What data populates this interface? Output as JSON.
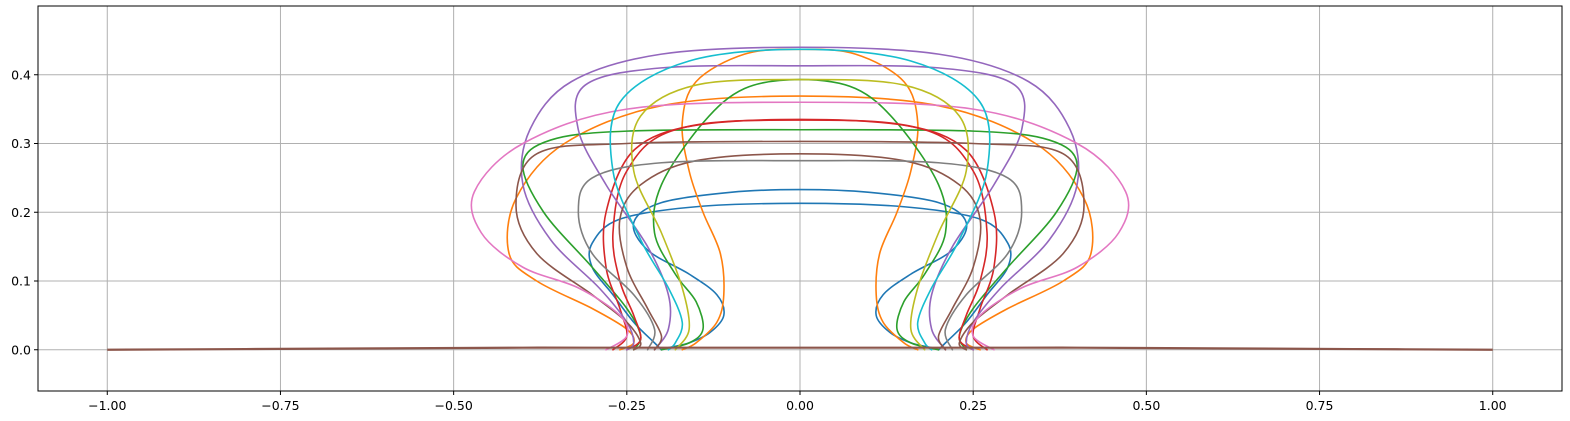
{
  "chart_data": {
    "type": "line",
    "title": "",
    "xlabel": "",
    "ylabel": "",
    "xlim": [
      -1.1,
      1.1
    ],
    "ylim": [
      -0.06,
      0.5
    ],
    "grid": true,
    "legend": "none",
    "x_ticks": [
      {
        "value": -1.0,
        "label": "−1.00"
      },
      {
        "value": -0.75,
        "label": "−0.75"
      },
      {
        "value": -0.5,
        "label": "−0.50"
      },
      {
        "value": -0.25,
        "label": "−0.25"
      },
      {
        "value": 0.0,
        "label": "0.00"
      },
      {
        "value": 0.25,
        "label": "0.25"
      },
      {
        "value": 0.5,
        "label": "0.50"
      },
      {
        "value": 0.75,
        "label": "0.75"
      },
      {
        "value": 1.0,
        "label": "1.00"
      }
    ],
    "y_ticks": [
      {
        "value": 0.0,
        "label": "0.0"
      },
      {
        "value": 0.1,
        "label": "0.1"
      },
      {
        "value": 0.2,
        "label": "0.2"
      },
      {
        "value": 0.3,
        "label": "0.3"
      },
      {
        "value": 0.4,
        "label": "0.4"
      }
    ],
    "baseline": {
      "color": "#8c564b",
      "x": [
        -1.0,
        -0.8,
        -0.6,
        -0.4,
        -0.3,
        0.3,
        0.4,
        0.6,
        0.8,
        1.0
      ],
      "y": [
        0.0,
        0.001,
        0.002,
        0.003,
        0.003,
        0.003,
        0.003,
        0.002,
        0.001,
        0.0
      ]
    },
    "series": [
      {
        "color": "#1f77b4",
        "x": [
          0.0,
          0.1,
          0.2,
          0.24,
          0.22,
          0.16,
          0.12,
          0.11,
          0.13,
          0.16,
          0.19,
          0.2
        ],
        "y": [
          0.233,
          0.229,
          0.214,
          0.185,
          0.145,
          0.11,
          0.08,
          0.05,
          0.025,
          0.01,
          0.003,
          0.0
        ]
      },
      {
        "color": "#1f77b4",
        "x": [
          0.0,
          0.15,
          0.26,
          0.3,
          0.3,
          0.27,
          0.24,
          0.21,
          0.2
        ],
        "y": [
          0.213,
          0.208,
          0.19,
          0.155,
          0.12,
          0.08,
          0.04,
          0.01,
          0.0
        ]
      },
      {
        "color": "#ff7f0e",
        "x": [
          0.0,
          0.08,
          0.15,
          0.17,
          0.16,
          0.14,
          0.115,
          0.11,
          0.12,
          0.15,
          0.17
        ],
        "y": [
          0.437,
          0.43,
          0.39,
          0.33,
          0.26,
          0.2,
          0.14,
          0.08,
          0.04,
          0.01,
          0.0
        ]
      },
      {
        "color": "#ff7f0e",
        "x": [
          0.0,
          0.2,
          0.34,
          0.41,
          0.42,
          0.38,
          0.3,
          0.25,
          0.24,
          0.26
        ],
        "y": [
          0.369,
          0.355,
          0.3,
          0.22,
          0.14,
          0.1,
          0.06,
          0.03,
          0.01,
          0.0
        ]
      },
      {
        "color": "#2ca02c",
        "x": [
          0.0,
          0.08,
          0.14,
          0.2,
          0.21,
          0.18,
          0.15,
          0.14,
          0.16,
          0.2
        ],
        "y": [
          0.393,
          0.38,
          0.33,
          0.24,
          0.17,
          0.11,
          0.07,
          0.03,
          0.01,
          0.0
        ]
      },
      {
        "color": "#2ca02c",
        "x": [
          0.0,
          0.25,
          0.36,
          0.4,
          0.37,
          0.3,
          0.25,
          0.23,
          0.24
        ],
        "y": [
          0.32,
          0.318,
          0.305,
          0.27,
          0.2,
          0.12,
          0.06,
          0.02,
          0.0
        ]
      },
      {
        "color": "#d62728",
        "x": [
          0.0,
          0.15,
          0.24,
          0.28,
          0.28,
          0.26,
          0.25,
          0.27
        ],
        "y": [
          0.334,
          0.327,
          0.29,
          0.2,
          0.12,
          0.06,
          0.02,
          0.0
        ]
      },
      {
        "color": "#d62728",
        "x": [
          0.0,
          0.18,
          0.25,
          0.27,
          0.26,
          0.24,
          0.23,
          0.25
        ],
        "y": [
          0.335,
          0.32,
          0.26,
          0.17,
          0.1,
          0.05,
          0.015,
          0.0
        ]
      },
      {
        "color": "#9467bd",
        "x": [
          0.0,
          0.2,
          0.31,
          0.32,
          0.28,
          0.22,
          0.19,
          0.19,
          0.21
        ],
        "y": [
          0.413,
          0.41,
          0.385,
          0.32,
          0.24,
          0.15,
          0.08,
          0.03,
          0.0
        ]
      },
      {
        "color": "#9467bd",
        "x": [
          0.0,
          0.2,
          0.33,
          0.39,
          0.4,
          0.36,
          0.29,
          0.25,
          0.24,
          0.25
        ],
        "y": [
          0.44,
          0.43,
          0.39,
          0.32,
          0.24,
          0.16,
          0.09,
          0.04,
          0.01,
          0.0
        ]
      },
      {
        "color": "#8c564b",
        "x": [
          0.0,
          0.15,
          0.23,
          0.26,
          0.25,
          0.22,
          0.2,
          0.21
        ],
        "y": [
          0.285,
          0.275,
          0.24,
          0.19,
          0.12,
          0.06,
          0.02,
          0.0
        ]
      },
      {
        "color": "#8c564b",
        "x": [
          0.0,
          0.25,
          0.38,
          0.41,
          0.38,
          0.3,
          0.25,
          0.23,
          0.24
        ],
        "y": [
          0.303,
          0.3,
          0.285,
          0.21,
          0.14,
          0.08,
          0.04,
          0.01,
          0.0
        ]
      },
      {
        "color": "#e377c2",
        "x": [
          0.0,
          0.25,
          0.4,
          0.47,
          0.46,
          0.4,
          0.32,
          0.26,
          0.25,
          0.28
        ],
        "y": [
          0.36,
          0.35,
          0.3,
          0.23,
          0.17,
          0.12,
          0.09,
          0.05,
          0.02,
          0.0
        ]
      },
      {
        "color": "#7f7f7f",
        "x": [
          0.0,
          0.2,
          0.3,
          0.32,
          0.3,
          0.24,
          0.21,
          0.22
        ],
        "y": [
          0.275,
          0.272,
          0.25,
          0.2,
          0.14,
          0.08,
          0.03,
          0.0
        ]
      },
      {
        "color": "#bcbd22",
        "x": [
          0.0,
          0.15,
          0.23,
          0.24,
          0.2,
          0.17,
          0.16,
          0.18
        ],
        "y": [
          0.393,
          0.385,
          0.34,
          0.26,
          0.17,
          0.09,
          0.03,
          0.0
        ]
      },
      {
        "color": "#17becf",
        "x": [
          0.0,
          0.16,
          0.26,
          0.27,
          0.23,
          0.19,
          0.17,
          0.18,
          0.19
        ],
        "y": [
          0.437,
          0.42,
          0.36,
          0.26,
          0.16,
          0.09,
          0.04,
          0.01,
          0.0
        ]
      }
    ]
  }
}
